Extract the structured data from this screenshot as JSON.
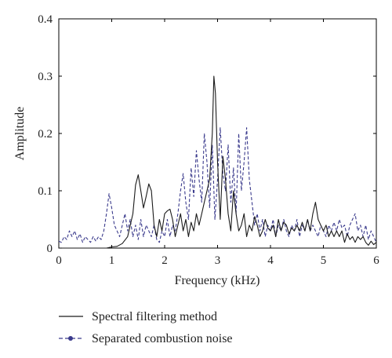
{
  "chart_data": {
    "type": "line",
    "xlabel": "Frequency (kHz)",
    "ylabel": "Amplitude",
    "xlim": [
      0,
      6
    ],
    "ylim": [
      0,
      0.4
    ],
    "xticks": [
      "0",
      "1",
      "2",
      "3",
      "4",
      "5",
      "6"
    ],
    "yticks": [
      "0",
      "0.1",
      "0.2",
      "0.3",
      "0.4"
    ],
    "grid": false,
    "legend_position": "bottom",
    "series": [
      {
        "name": "Spectral filtering method",
        "color": "#1a1a1a",
        "style": "solid",
        "x": [
          0.0,
          0.9,
          1.0,
          1.1,
          1.2,
          1.3,
          1.4,
          1.45,
          1.5,
          1.55,
          1.6,
          1.65,
          1.7,
          1.75,
          1.8,
          1.85,
          1.9,
          1.95,
          2.0,
          2.05,
          2.1,
          2.15,
          2.2,
          2.25,
          2.3,
          2.35,
          2.4,
          2.45,
          2.5,
          2.55,
          2.6,
          2.65,
          2.7,
          2.75,
          2.8,
          2.85,
          2.9,
          2.93,
          2.96,
          3.0,
          3.05,
          3.1,
          3.15,
          3.2,
          3.25,
          3.3,
          3.35,
          3.4,
          3.45,
          3.5,
          3.55,
          3.6,
          3.65,
          3.7,
          3.75,
          3.8,
          3.85,
          3.9,
          3.95,
          4.0,
          4.05,
          4.1,
          4.15,
          4.2,
          4.25,
          4.3,
          4.35,
          4.4,
          4.45,
          4.5,
          4.55,
          4.6,
          4.65,
          4.7,
          4.75,
          4.8,
          4.85,
          4.9,
          4.95,
          5.0,
          5.05,
          5.1,
          5.15,
          5.2,
          5.25,
          5.3,
          5.35,
          5.4,
          5.45,
          5.5,
          5.55,
          5.6,
          5.65,
          5.7,
          5.75,
          5.8,
          5.85,
          5.9,
          5.95,
          6.0
        ],
        "values": [
          0.0,
          0.0,
          0.002,
          0.003,
          0.008,
          0.02,
          0.06,
          0.11,
          0.128,
          0.1,
          0.07,
          0.09,
          0.112,
          0.1,
          0.04,
          0.02,
          0.05,
          0.03,
          0.06,
          0.065,
          0.068,
          0.05,
          0.02,
          0.04,
          0.06,
          0.03,
          0.05,
          0.02,
          0.045,
          0.03,
          0.06,
          0.04,
          0.06,
          0.08,
          0.1,
          0.12,
          0.2,
          0.3,
          0.27,
          0.15,
          0.05,
          0.16,
          0.12,
          0.06,
          0.03,
          0.1,
          0.06,
          0.03,
          0.04,
          0.06,
          0.02,
          0.04,
          0.03,
          0.055,
          0.04,
          0.02,
          0.03,
          0.05,
          0.035,
          0.03,
          0.04,
          0.02,
          0.05,
          0.03,
          0.045,
          0.04,
          0.025,
          0.035,
          0.03,
          0.04,
          0.03,
          0.045,
          0.03,
          0.05,
          0.03,
          0.06,
          0.08,
          0.05,
          0.04,
          0.03,
          0.04,
          0.02,
          0.03,
          0.02,
          0.03,
          0.02,
          0.03,
          0.01,
          0.025,
          0.015,
          0.02,
          0.01,
          0.02,
          0.015,
          0.02,
          0.01,
          0.005,
          0.012,
          0.006,
          0.01
        ]
      },
      {
        "name": "Separated combustion noise",
        "color": "#3a3a8c",
        "style": "dashed",
        "x": [
          0.0,
          0.05,
          0.1,
          0.15,
          0.2,
          0.25,
          0.3,
          0.35,
          0.4,
          0.45,
          0.5,
          0.55,
          0.6,
          0.65,
          0.7,
          0.75,
          0.8,
          0.85,
          0.9,
          0.95,
          1.0,
          1.05,
          1.1,
          1.15,
          1.2,
          1.25,
          1.3,
          1.35,
          1.4,
          1.45,
          1.5,
          1.55,
          1.6,
          1.65,
          1.7,
          1.75,
          1.8,
          1.85,
          1.9,
          1.95,
          2.0,
          2.05,
          2.1,
          2.15,
          2.2,
          2.25,
          2.3,
          2.35,
          2.4,
          2.45,
          2.5,
          2.55,
          2.6,
          2.65,
          2.7,
          2.75,
          2.8,
          2.85,
          2.9,
          2.95,
          3.0,
          3.05,
          3.1,
          3.15,
          3.2,
          3.25,
          3.3,
          3.35,
          3.4,
          3.45,
          3.5,
          3.55,
          3.6,
          3.65,
          3.7,
          3.75,
          3.8,
          3.85,
          3.9,
          3.95,
          4.0,
          4.05,
          4.1,
          4.15,
          4.2,
          4.25,
          4.3,
          4.35,
          4.4,
          4.45,
          4.5,
          4.55,
          4.6,
          4.65,
          4.7,
          4.75,
          4.8,
          4.85,
          4.9,
          4.95,
          5.0,
          5.05,
          5.1,
          5.15,
          5.2,
          5.25,
          5.3,
          5.35,
          5.4,
          5.45,
          5.5,
          5.55,
          5.6,
          5.65,
          5.7,
          5.75,
          5.8,
          5.85,
          5.9,
          5.95,
          6.0
        ],
        "values": [
          0.012,
          0.01,
          0.02,
          0.015,
          0.03,
          0.02,
          0.03,
          0.015,
          0.025,
          0.01,
          0.02,
          0.015,
          0.01,
          0.02,
          0.012,
          0.02,
          0.015,
          0.03,
          0.06,
          0.095,
          0.07,
          0.04,
          0.03,
          0.02,
          0.04,
          0.06,
          0.03,
          0.05,
          0.02,
          0.04,
          0.015,
          0.05,
          0.02,
          0.04,
          0.03,
          0.02,
          0.04,
          0.015,
          0.01,
          0.03,
          0.02,
          0.05,
          0.02,
          0.04,
          0.03,
          0.06,
          0.1,
          0.13,
          0.08,
          0.05,
          0.14,
          0.09,
          0.17,
          0.12,
          0.08,
          0.2,
          0.15,
          0.07,
          0.18,
          0.05,
          0.12,
          0.21,
          0.13,
          0.1,
          0.18,
          0.08,
          0.14,
          0.06,
          0.2,
          0.1,
          0.15,
          0.21,
          0.12,
          0.08,
          0.04,
          0.06,
          0.03,
          0.05,
          0.02,
          0.04,
          0.03,
          0.05,
          0.02,
          0.04,
          0.03,
          0.05,
          0.03,
          0.02,
          0.04,
          0.03,
          0.05,
          0.02,
          0.04,
          0.03,
          0.05,
          0.03,
          0.04,
          0.03,
          0.02,
          0.04,
          0.03,
          0.02,
          0.04,
          0.03,
          0.045,
          0.03,
          0.05,
          0.035,
          0.04,
          0.02,
          0.04,
          0.05,
          0.06,
          0.03,
          0.04,
          0.02,
          0.04,
          0.015,
          0.03,
          0.02,
          0.01
        ]
      }
    ]
  }
}
